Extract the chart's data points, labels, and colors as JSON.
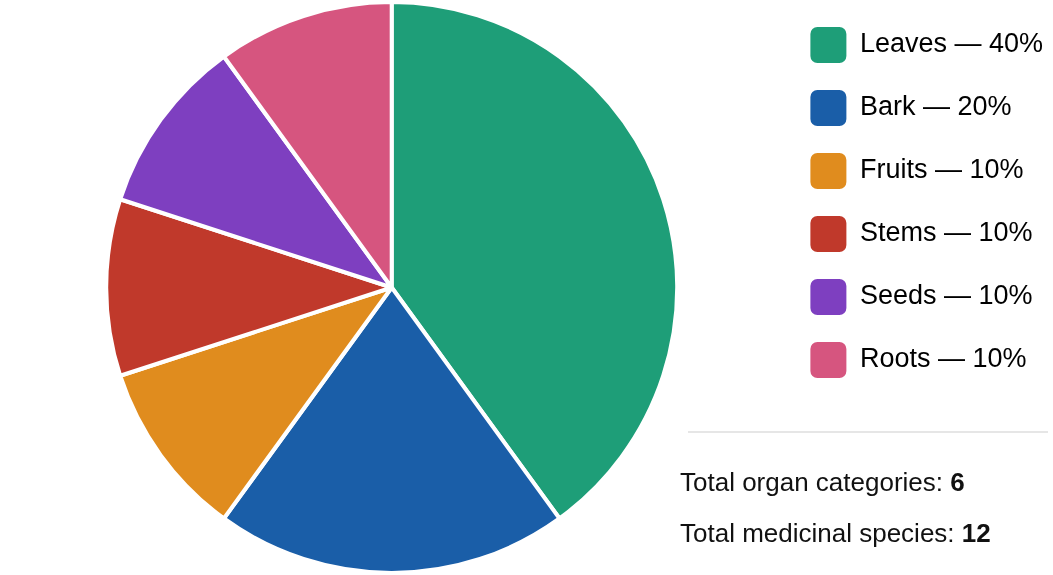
{
  "chart_data": {
    "type": "pie",
    "categories": [
      "Leaves — 40%",
      "Bark — 20%",
      "Fruits — 10%",
      "Stems — 10%",
      "Seeds — 10%",
      "Roots — 10%"
    ],
    "values": [
      40,
      20,
      10,
      10,
      10,
      10
    ],
    "colors": [
      "#1e9e78",
      "#1a5ea8",
      "#e08c1e",
      "#c0392b",
      "#7e3fc0",
      "#d6557f"
    ],
    "legend": "right",
    "annotations": [
      "Total organ categories: 6",
      "Total medicinal species: 12"
    ]
  }
}
